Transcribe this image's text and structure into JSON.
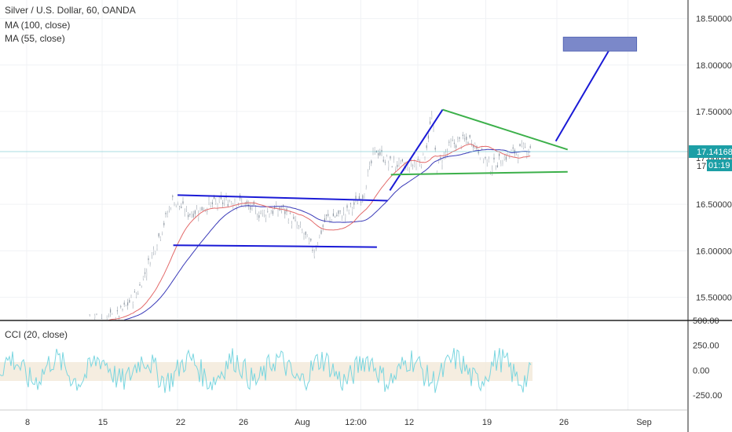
{
  "legend": {
    "symbol": "Silver / U.S. Dollar, 60, OANDA",
    "ma100": "MA (100, close)",
    "ma55": "MA (55, close)",
    "cci": "CCI (20, close)"
  },
  "price_badge": {
    "price": "17.14168",
    "level": "17",
    "countdown": "01:19"
  },
  "colors": {
    "ma100": "#3a3ab8",
    "ma55": "#e36a6a",
    "cci": "#7ad6e0",
    "trend_blue": "#1a1ad6",
    "trend_green": "#3cb04a",
    "target_box": "#7b88c9"
  },
  "chart_data": [
    {
      "type": "line",
      "title": "Silver / U.S. Dollar, 60, OANDA",
      "xlabel": "",
      "ylabel": "",
      "x_tick_labels": [
        "8",
        "15",
        "22",
        "26",
        "Aug",
        "12:00",
        "12",
        "19",
        "26",
        "Sep"
      ],
      "y_tick_labels": [
        "15.50000",
        "16.00000",
        "16.50000",
        "17.00000",
        "17.50000",
        "18.00000",
        "18.50000"
      ],
      "ylim": [
        15.25,
        18.7
      ],
      "last_price": 17.14168,
      "series": [
        {
          "name": "MA (100, close)"
        },
        {
          "name": "MA (55, close)"
        }
      ],
      "annotations": {
        "channel_top": [
          [
            22,
            16.6
          ],
          [
            41.5,
            16.54
          ]
        ],
        "channel_bottom": [
          [
            21.6,
            16.06
          ],
          [
            40.5,
            16.04
          ]
        ],
        "flag_pole": [
          [
            41.7,
            16.65
          ],
          [
            46.6,
            17.52
          ]
        ],
        "wedge_top": [
          [
            46.6,
            17.52
          ],
          [
            58.2,
            17.09
          ]
        ],
        "wedge_bottom": [
          [
            41.8,
            16.82
          ],
          [
            58.2,
            16.85
          ]
        ],
        "projection": [
          [
            57.1,
            17.18
          ],
          [
            62.4,
            18.23
          ]
        ],
        "target_box": {
          "x": [
            57.8,
            64.6
          ],
          "y": [
            18.15,
            18.3
          ]
        }
      },
      "grid": true
    },
    {
      "type": "line",
      "title": "CCI (20, close)",
      "y_tick_labels": [
        "-250.00",
        "0.00",
        "250.00",
        "500.00"
      ],
      "ylim": [
        -400,
        500
      ],
      "band": [
        -100,
        100
      ],
      "series": [
        {
          "name": "CCI (20, close)"
        }
      ]
    }
  ]
}
